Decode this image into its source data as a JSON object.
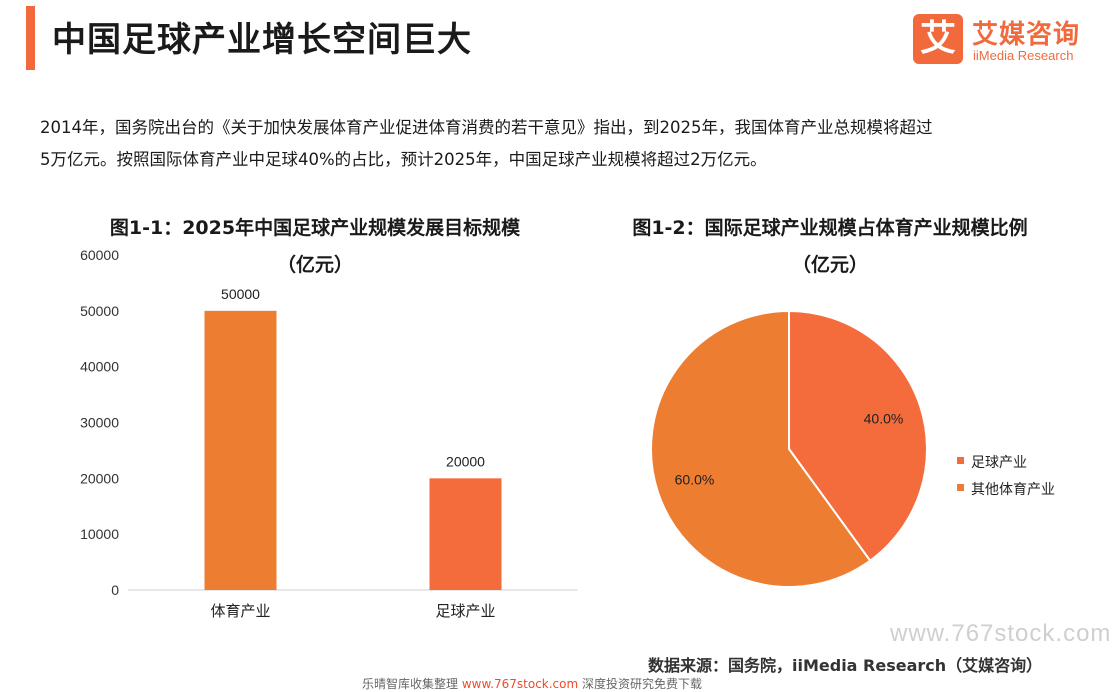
{
  "header": {
    "title": "中国足球产业增长空间巨大",
    "logo_mark": "艾",
    "logo_cn": "艾媒咨询",
    "logo_en": "iiMedia Research"
  },
  "intro": {
    "line1": "2014年，国务院出台的《关于加快发展体育产业促进体育消费的若干意见》指出，到2025年，我国体育产业总规模将超过",
    "line2": "5万亿元。按照国际体育产业中足球40%的占比，预计2025年，中国足球产业规模将超过2万亿元。"
  },
  "chart_data": [
    {
      "type": "bar",
      "title": "图1-1：2025年中国足球产业规模发展目标规模",
      "subtitle": "（亿元）",
      "categories": [
        "体育产业",
        "足球产业"
      ],
      "values": [
        50000,
        20000
      ],
      "colors": [
        "#ed7d31",
        "#f46b3c"
      ],
      "ylim": [
        0,
        60000
      ],
      "yticks": [
        0,
        10000,
        20000,
        30000,
        40000,
        50000,
        60000
      ],
      "data_labels": [
        "50000",
        "20000"
      ],
      "grid": false
    },
    {
      "type": "pie",
      "title": "图1-2：国际足球产业规模占体育产业规模比例",
      "subtitle": "（亿元）",
      "slices": [
        {
          "label": "足球产业",
          "value": 40.0,
          "display": "40.0%",
          "color": "#f46b3c"
        },
        {
          "label": "其他体育产业",
          "value": 60.0,
          "display": "60.0%",
          "color": "#ed7d31"
        }
      ],
      "legend_position": "right"
    }
  ],
  "footer": {
    "source": "数据来源：国务院，iiMedia Research（艾媒咨询）"
  },
  "watermarks": {
    "site": "www.767stock.com",
    "bottom_prefix": "乐晴智库收集整理 ",
    "bottom_url": "www.767stock.com",
    "bottom_suffix": " 深度投资研究免费下载"
  }
}
